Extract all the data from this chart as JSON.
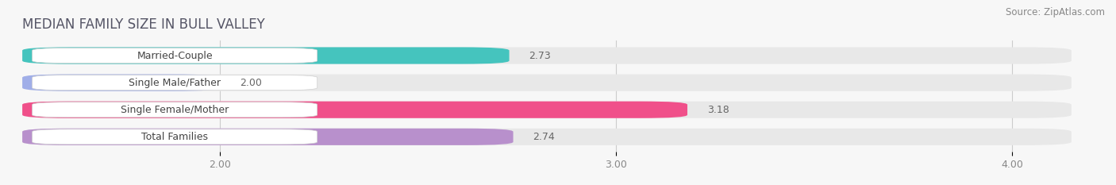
{
  "title": "MEDIAN FAMILY SIZE IN BULL VALLEY",
  "source": "Source: ZipAtlas.com",
  "categories": [
    "Married-Couple",
    "Single Male/Father",
    "Single Female/Mother",
    "Total Families"
  ],
  "values": [
    2.73,
    2.0,
    3.18,
    2.74
  ],
  "bar_colors": [
    "#45c4be",
    "#a0aee8",
    "#f0508a",
    "#b890cc"
  ],
  "xlim_min": 1.5,
  "xlim_max": 4.15,
  "x_ticks": [
    2.0,
    3.0,
    4.0
  ],
  "x_tick_labels": [
    "2.00",
    "3.00",
    "4.00"
  ],
  "background_color": "#f7f7f7",
  "bar_background_color": "#e8e8e8",
  "title_fontsize": 12,
  "label_fontsize": 9,
  "value_fontsize": 9,
  "source_fontsize": 8.5,
  "bar_height": 0.62,
  "bar_gap": 0.38
}
